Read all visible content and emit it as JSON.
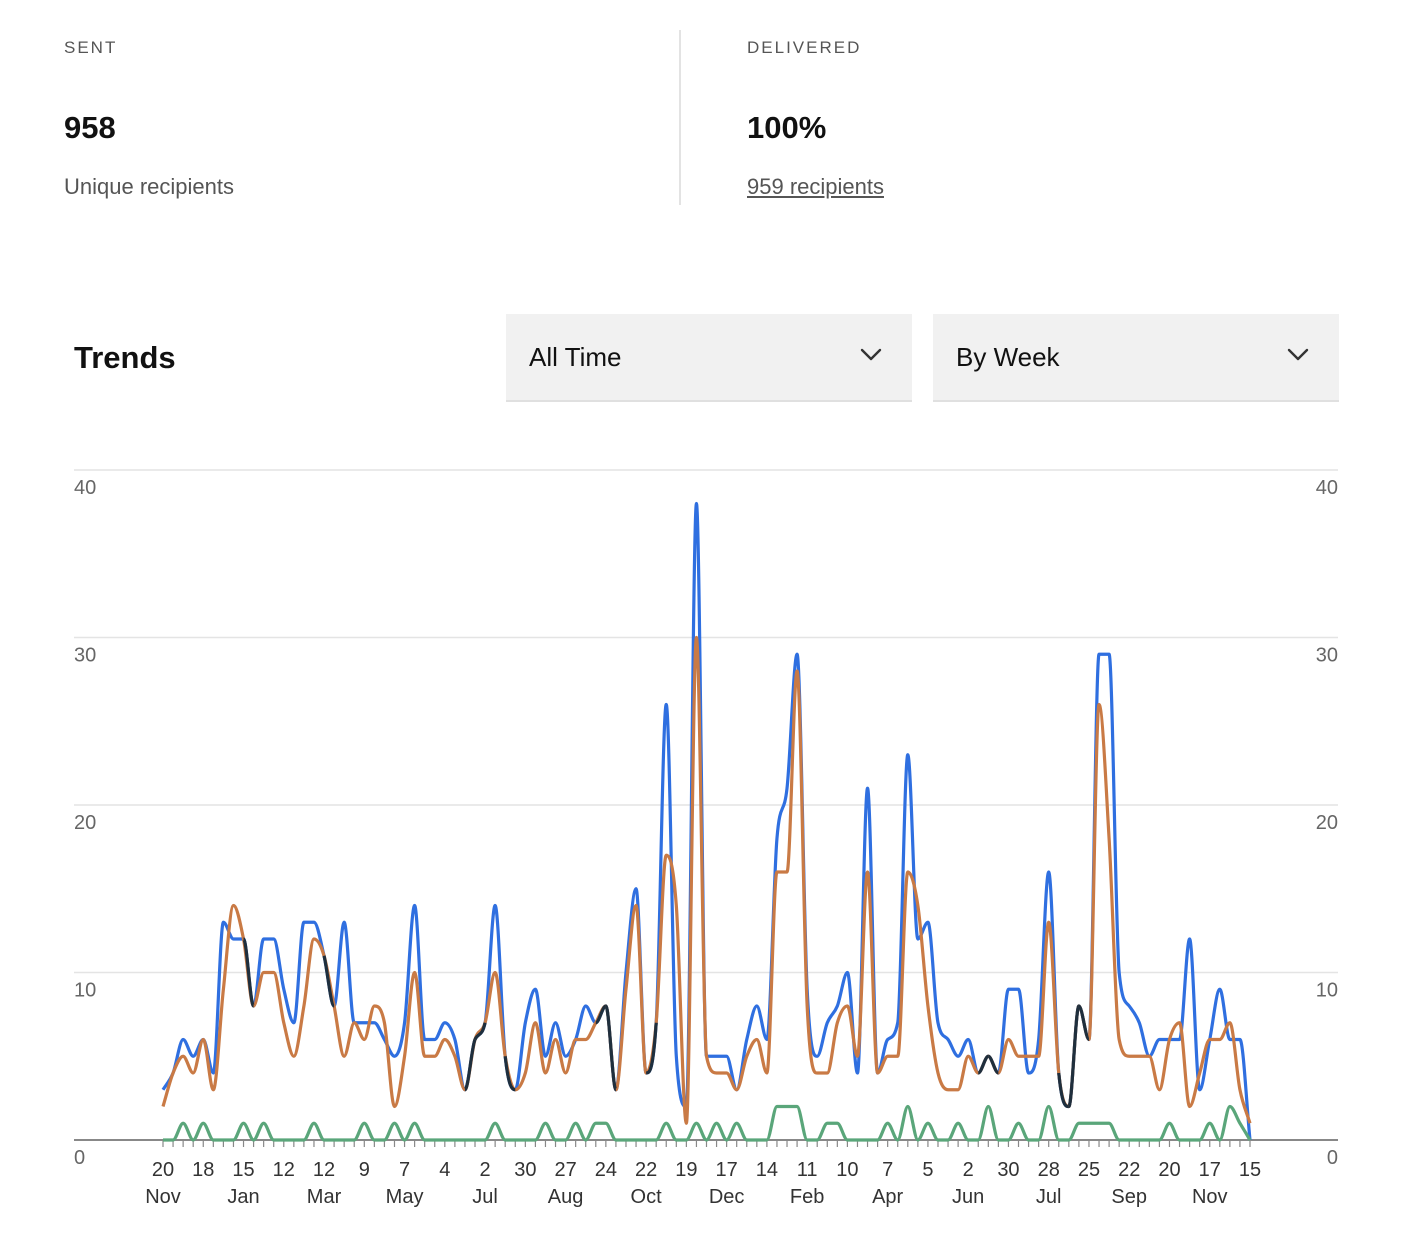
{
  "stats": {
    "sent": {
      "label": "SENT",
      "value": "958",
      "sub": "Unique recipients"
    },
    "delivered": {
      "label": "DELIVERED",
      "value": "100%",
      "sub": "959 recipients"
    }
  },
  "trends": {
    "title": "Trends",
    "range_select": {
      "value": "All Time",
      "icon": "chevron-down-icon"
    },
    "period_select": {
      "value": "By Week",
      "icon": "chevron-down-icon"
    }
  },
  "colors": {
    "blue": "#2f6fe0",
    "orange": "#c97a45",
    "green": "#5aa67a",
    "dark": "#1f2f3d",
    "grid": "#e4e4e4",
    "axis": "#888888",
    "tick_text": "#666666"
  },
  "chart_data": {
    "type": "line",
    "ylim": [
      0,
      40
    ],
    "yticks": [
      0,
      10,
      20,
      30,
      40
    ],
    "grid": true,
    "dual_y_axis": true,
    "x_tick_labels": [
      "20",
      "18",
      "15",
      "12",
      "12",
      "9",
      "7",
      "4",
      "2",
      "30",
      "27",
      "24",
      "22",
      "19",
      "17",
      "14",
      "11",
      "10",
      "7",
      "5",
      "2",
      "30",
      "28",
      "25",
      "22",
      "20",
      "17",
      "15"
    ],
    "x_month_labels": [
      "Nov",
      "Jan",
      "Mar",
      "May",
      "Jul",
      "Aug",
      "Oct",
      "Dec",
      "Feb",
      "Apr",
      "Jun",
      "Jul",
      "Sep",
      "Nov"
    ],
    "weeks": 109,
    "series": [
      {
        "color": "#2f6fe0",
        "values": [
          3,
          4,
          6,
          5,
          6,
          4,
          13,
          12,
          12,
          8,
          12,
          12,
          9,
          7,
          13,
          13,
          11,
          8,
          13,
          7,
          7,
          7,
          6,
          5,
          7,
          14,
          6,
          6,
          7,
          6,
          3,
          6,
          7,
          14,
          5,
          3,
          7,
          9,
          5,
          7,
          5,
          6,
          8,
          7,
          8,
          3,
          10,
          15,
          4,
          7,
          26,
          5,
          2,
          38,
          5,
          5,
          5,
          3,
          6,
          8,
          6,
          18,
          21,
          29,
          9,
          5,
          7,
          8,
          10,
          4,
          21,
          4,
          6,
          7,
          23,
          12,
          13,
          7,
          6,
          5,
          6,
          4,
          5,
          4,
          9,
          9,
          4,
          6,
          16,
          4,
          2,
          8,
          6,
          29,
          29,
          10,
          8,
          7,
          5,
          6,
          6,
          6,
          12,
          3,
          6,
          9,
          6,
          6,
          0
        ]
      },
      {
        "color": "#c97a45",
        "values": [
          2,
          4,
          5,
          4,
          6,
          3,
          9,
          14,
          12,
          8,
          10,
          10,
          7,
          5,
          8,
          12,
          11,
          8,
          5,
          7,
          6,
          8,
          7,
          2,
          5,
          10,
          5,
          5,
          6,
          5,
          3,
          6,
          7,
          10,
          5,
          3,
          4,
          7,
          4,
          6,
          4,
          6,
          6,
          7,
          8,
          3,
          9,
          14,
          4,
          7,
          17,
          14,
          1,
          30,
          5,
          4,
          4,
          3,
          5,
          6,
          4,
          16,
          16,
          28,
          8,
          4,
          4,
          7,
          8,
          5,
          16,
          4,
          5,
          5,
          16,
          14,
          8,
          4,
          3,
          3,
          5,
          4,
          5,
          4,
          6,
          5,
          5,
          5,
          13,
          4,
          2,
          8,
          6,
          26,
          18,
          6,
          5,
          5,
          5,
          3,
          6,
          7,
          2,
          4,
          6,
          6,
          7,
          3,
          1
        ]
      },
      {
        "color": "#5aa67a",
        "values": [
          0,
          0,
          1,
          0,
          1,
          0,
          0,
          0,
          1,
          0,
          1,
          0,
          0,
          0,
          0,
          1,
          0,
          0,
          0,
          0,
          1,
          0,
          0,
          1,
          0,
          1,
          0,
          0,
          0,
          0,
          0,
          0,
          0,
          1,
          0,
          0,
          0,
          0,
          1,
          0,
          0,
          1,
          0,
          1,
          1,
          0,
          0,
          0,
          0,
          0,
          1,
          0,
          0,
          1,
          0,
          1,
          0,
          1,
          0,
          0,
          0,
          2,
          2,
          2,
          0,
          0,
          1,
          1,
          0,
          0,
          0,
          0,
          1,
          0,
          2,
          0,
          1,
          0,
          0,
          1,
          0,
          0,
          2,
          0,
          0,
          1,
          0,
          0,
          2,
          0,
          0,
          1,
          1,
          1,
          1,
          0,
          0,
          0,
          0,
          0,
          1,
          0,
          0,
          0,
          1,
          0,
          2,
          1,
          0
        ]
      }
    ]
  }
}
